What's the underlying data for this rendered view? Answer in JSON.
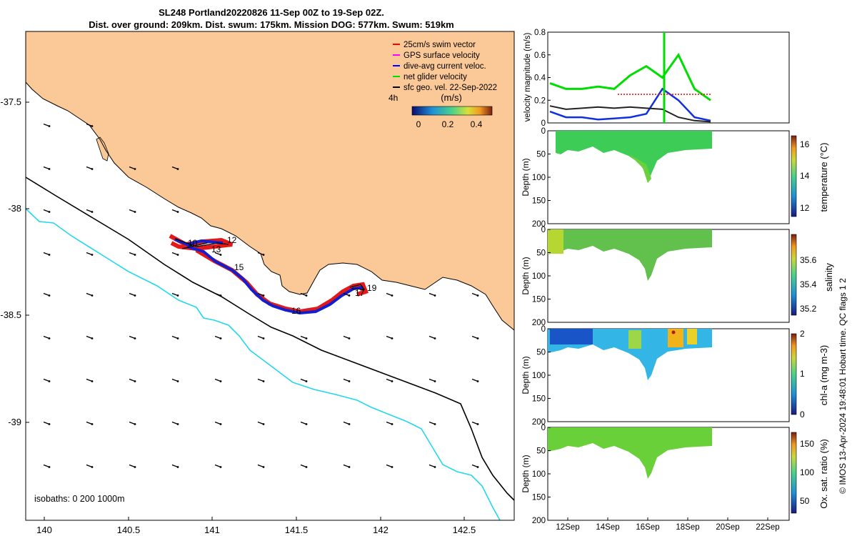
{
  "title_line1": "SL248 Portland20220826 11-Sep 00Z to 19-Sep 02Z.",
  "title_line2": "Dist. over ground: 209km. Dist. swum: 175km. Mission DOG: 577km. Swum: 519km",
  "map": {
    "x_ticks": [
      "140",
      "140.5",
      "141",
      "141.5",
      "142",
      "142.5"
    ],
    "y_ticks": [
      "-37.5",
      "-38",
      "-38.5",
      "-39"
    ],
    "legend": [
      {
        "label": "25cm/s swim vector",
        "color": "#ff0000"
      },
      {
        "label": "GPS surface velocity",
        "color": "#ff00ff"
      },
      {
        "label": "dive-avg current veloc.",
        "color": "#0000ff"
      },
      {
        "label": "net glider velocity",
        "color": "#00dd00"
      },
      {
        "label": "sfc geo. vel. 22-Sep-2022",
        "color": "#000000"
      }
    ],
    "legend_time": "4h",
    "colorbar_title": "(m/s)",
    "colorbar_ticks": [
      "0",
      "0.2",
      "0.4"
    ],
    "track_labels": [
      "10",
      "12",
      "13",
      "15",
      "16",
      "17",
      "19"
    ],
    "isobaths_note": "isobaths: 0   200  1000m",
    "land_color": "#fbc897",
    "isobath_200_color": "#000000",
    "isobath_1000_color": "#22d8ee"
  },
  "panels": {
    "velocity": {
      "ylabel": "velocity magnitude (m/s)",
      "yticks": [
        "0",
        "0.2",
        "0.4",
        "0.6",
        "0.8"
      ]
    },
    "depth_ylabel": "Depth (m)",
    "depth_ticks": [
      "0",
      "50",
      "100",
      "150",
      "200"
    ],
    "date_ticks": [
      "12Sep",
      "14Sep",
      "16Sep",
      "18Sep",
      "20Sep",
      "22Sep"
    ],
    "temperature": {
      "label": "temperature (°C)",
      "ticks": [
        "12",
        "14",
        "16"
      ]
    },
    "salinity": {
      "label": "salinity",
      "ticks": [
        "35.2",
        "35.4",
        "35.6"
      ]
    },
    "chla": {
      "label": "chl-a (mg m-3)",
      "ticks": [
        "0",
        "1",
        "2"
      ]
    },
    "oxygen": {
      "label": "Ox. sat. ratio (%)",
      "ticks": [
        "50",
        "100",
        "150"
      ]
    }
  },
  "footer_note": "© IMOS 13-Apr-2024 19:48:01 Hobart time. QC flags 1  2",
  "chart_data": [
    {
      "type": "line",
      "title": "",
      "xlabel": "",
      "ylabel": "velocity magnitude (m/s)",
      "ylim": [
        0,
        0.8
      ],
      "x": [
        "11-Sep",
        "12-Sep",
        "13-Sep",
        "14-Sep",
        "15-Sep",
        "15.5-Sep",
        "16-Sep",
        "16.5-Sep",
        "17-Sep",
        "18-Sep",
        "19-Sep"
      ],
      "series": [
        {
          "name": "net glider velocity",
          "values": [
            0.35,
            0.3,
            0.3,
            0.32,
            0.3,
            0.42,
            0.5,
            0.4,
            0.6,
            0.3,
            0.2
          ]
        },
        {
          "name": "dive-avg current veloc.",
          "values": [
            0.1,
            0.05,
            0.05,
            0.03,
            0.04,
            0.05,
            0.08,
            0.3,
            0.2,
            0.05,
            0.02
          ]
        },
        {
          "name": "sfc geo. vel. 22-Sep-2022",
          "values": [
            0.15,
            0.12,
            0.13,
            0.14,
            0.13,
            0.14,
            0.13,
            0.12,
            0.05,
            0.02,
            0.01
          ]
        }
      ]
    }
  ]
}
